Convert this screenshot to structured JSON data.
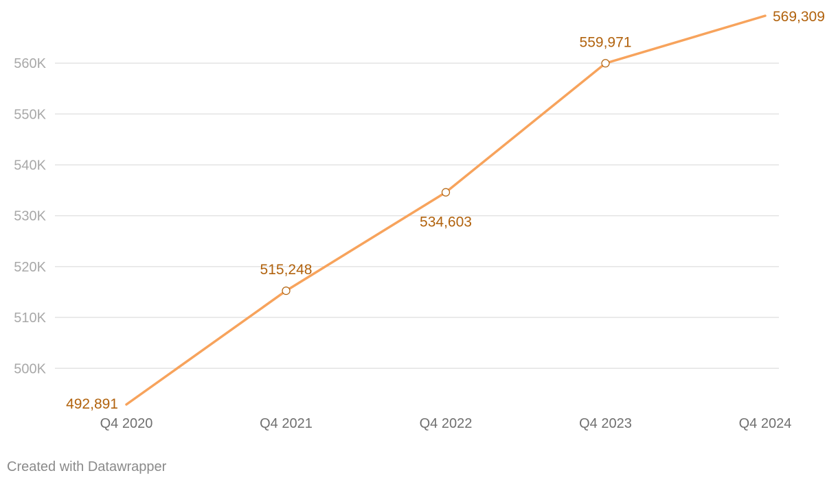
{
  "chart_data": {
    "type": "line",
    "title": "",
    "xlabel": "",
    "ylabel": "",
    "categories": [
      "Q4 2020",
      "Q4 2021",
      "Q4 2022",
      "Q4 2023",
      "Q4 2024"
    ],
    "series": [
      {
        "values": [
          492891,
          515248,
          534603,
          559971,
          569309
        ],
        "value_labels": [
          "492,891",
          "515,248",
          "534,603",
          "559,971",
          "569,309"
        ],
        "color": "#f7a35c"
      }
    ],
    "label_color": "#b1620d",
    "y_ticks": [
      500000,
      510000,
      520000,
      530000,
      540000,
      550000,
      560000
    ],
    "y_tick_labels": [
      "500K",
      "510K",
      "520K",
      "530K",
      "540K",
      "550K",
      "560K"
    ],
    "ylim": [
      492891,
      569309
    ],
    "grid": true,
    "legend": "none"
  },
  "footer": {
    "credit": "Created with Datawrapper"
  }
}
